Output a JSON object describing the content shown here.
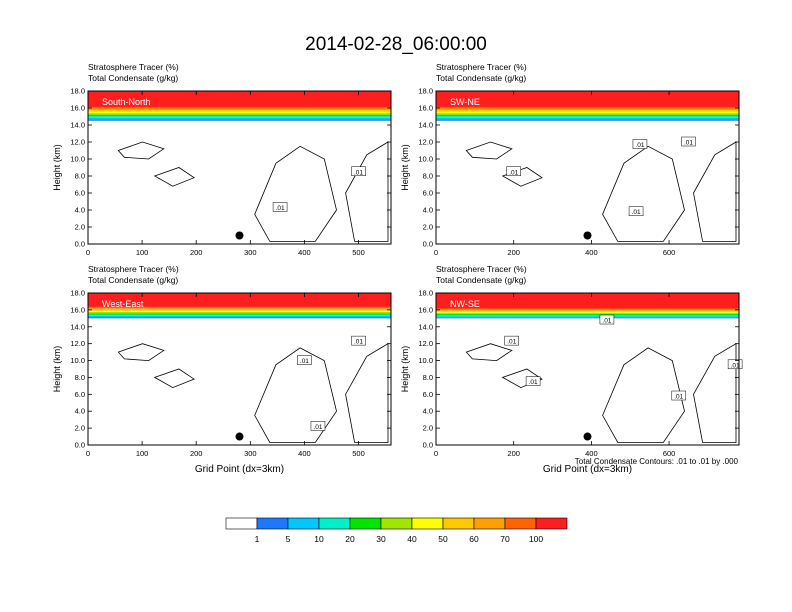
{
  "figure": {
    "title": "2014-02-28_06:00:00",
    "contour_note": "Total Condensate Contours: .01 to .01 by .000"
  },
  "colors": {
    "bands": [
      "#ffffff",
      "#1e78ff",
      "#00c8ff",
      "#00f0c8",
      "#00e600",
      "#a0e600",
      "#ffff00",
      "#ffc800",
      "#ffa000",
      "#ff6400",
      "#ff1e1e"
    ],
    "contour": "#000000",
    "marker": "#000000"
  },
  "colorbar": {
    "labels": [
      "1",
      "5",
      "10",
      "20",
      "30",
      "40",
      "50",
      "60",
      "70",
      "100"
    ]
  },
  "chart_data": [
    {
      "type": "heatmap",
      "panel": "South-North",
      "series_labels": [
        "Stratosphere Tracer   (%)",
        "Total Condensate   (g/kg)"
      ],
      "xlabel": "",
      "ylabel": "Height (km)",
      "xlim": [
        0,
        560
      ],
      "ylim": [
        0,
        18
      ],
      "xticks": [
        "0",
        "100",
        "200",
        "300",
        "400",
        "500"
      ],
      "yticks": [
        "0.0",
        "2.0",
        "4.0",
        "6.0",
        "8.0",
        "10.0",
        "12.0",
        "14.0",
        "16.0",
        "18.0"
      ],
      "tracer_base_km": 14.5,
      "tracer_saturation_km": 16.3,
      "contour_label": ".01",
      "marker": {
        "x": 280,
        "y": 1.0
      },
      "contour_labels_at": [
        {
          "x": 355,
          "y": 4.3
        },
        {
          "x": 500,
          "y": 8.5
        }
      ]
    },
    {
      "type": "heatmap",
      "panel": "SW-NE",
      "series_labels": [
        "Stratosphere Tracer   (%)",
        "Total Condensate   (g/kg)"
      ],
      "xlabel": "",
      "ylabel": "Height (km)",
      "xlim": [
        0,
        780
      ],
      "ylim": [
        0,
        18
      ],
      "xticks": [
        "0",
        "200",
        "400",
        "600"
      ],
      "yticks": [
        "0.0",
        "2.0",
        "4.0",
        "6.0",
        "8.0",
        "10.0",
        "12.0",
        "14.0",
        "16.0",
        "18.0"
      ],
      "tracer_base_km": 14.5,
      "tracer_saturation_km": 16.3,
      "contour_label": ".01",
      "marker": {
        "x": 390,
        "y": 1.0
      },
      "contour_labels_at": [
        {
          "x": 200,
          "y": 8.5
        },
        {
          "x": 515,
          "y": 3.8
        },
        {
          "x": 525,
          "y": 11.7
        },
        {
          "x": 650,
          "y": 12.0
        }
      ]
    },
    {
      "type": "heatmap",
      "panel": "West-East",
      "series_labels": [
        "Stratosphere Tracer   (%)",
        "Total Condensate   (g/kg)"
      ],
      "xlabel": "Grid Point (dx=3km)",
      "ylabel": "Height (km)",
      "xlim": [
        0,
        560
      ],
      "ylim": [
        0,
        18
      ],
      "xticks": [
        "0",
        "100",
        "200",
        "300",
        "400",
        "500"
      ],
      "yticks": [
        "0.0",
        "2.0",
        "4.0",
        "6.0",
        "8.0",
        "10.0",
        "12.0",
        "14.0",
        "16.0",
        "18.0"
      ],
      "tracer_base_km": 15.0,
      "tracer_saturation_km": 16.5,
      "contour_label": ".01",
      "marker": {
        "x": 280,
        "y": 1.0
      },
      "contour_labels_at": [
        {
          "x": 400,
          "y": 10.0
        },
        {
          "x": 500,
          "y": 12.3
        },
        {
          "x": 425,
          "y": 2.2
        }
      ]
    },
    {
      "type": "heatmap",
      "panel": "NW-SE",
      "series_labels": [
        "Stratosphere Tracer   (%)",
        "Total Condensate   (g/kg)"
      ],
      "xlabel": "Grid Point (dx=3km)",
      "ylabel": "Height (km)",
      "xlim": [
        0,
        780
      ],
      "ylim": [
        0,
        18
      ],
      "xticks": [
        "0",
        "200",
        "400",
        "600"
      ],
      "yticks": [
        "0.0",
        "2.0",
        "4.0",
        "6.0",
        "8.0",
        "10.0",
        "12.0",
        "14.0",
        "16.0",
        "18.0"
      ],
      "tracer_base_km": 15.0,
      "tracer_saturation_km": 16.3,
      "contour_label": ".01",
      "marker": {
        "x": 390,
        "y": 1.0
      },
      "contour_labels_at": [
        {
          "x": 195,
          "y": 12.3
        },
        {
          "x": 250,
          "y": 7.5
        },
        {
          "x": 440,
          "y": 14.8
        },
        {
          "x": 625,
          "y": 5.8
        },
        {
          "x": 770,
          "y": 9.5
        }
      ]
    }
  ]
}
